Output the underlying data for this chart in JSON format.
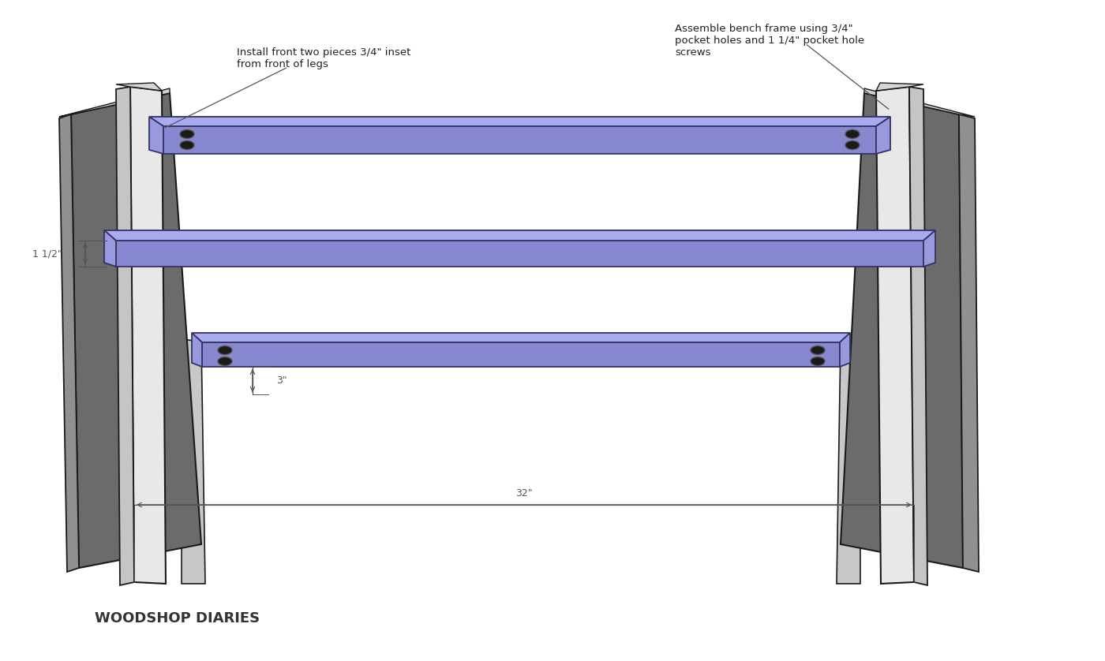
{
  "bg_color": "#ffffff",
  "watermark": "WOODSHOP DIARIES",
  "panel_color": "#6b6b6b",
  "panel_light": "#909090",
  "panel_edge": "#1a1a1a",
  "leg_front_color": "#e8e8e8",
  "leg_side_color": "#c5c5c5",
  "leg_top_color": "#d5d5d5",
  "leg_edge": "#1a1a1a",
  "rail_face_color": "#8888d0",
  "rail_top_color": "#aaaaee",
  "rail_side_color": "#9999dd",
  "rail_edge": "#333366",
  "hole_color": "#1a1a1a",
  "hole_edge": "#555555",
  "ann_color": "#555555",
  "dim_color": "#555555",
  "ann1_text": "Install front two pieces 3/4\" inset\nfrom front of legs",
  "ann2_text": "Assemble bench frame using 3/4\"\npocket holes and 1 1/4\" pocket hole\nscrews",
  "dim1_text": "1 1/2\"",
  "dim2_text": "3\"",
  "dim3_text": "32\""
}
